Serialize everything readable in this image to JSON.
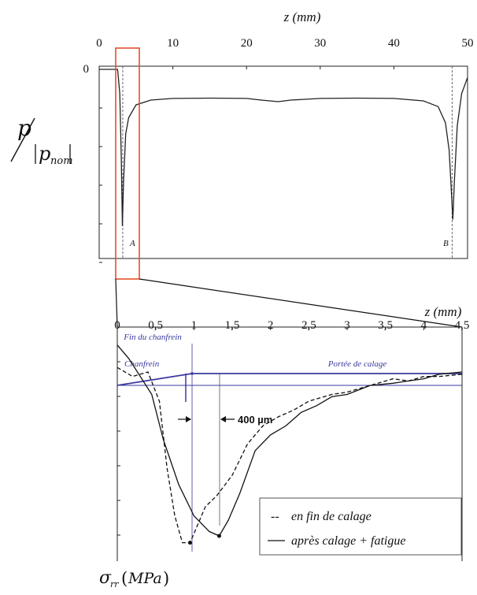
{
  "chart_data": [
    {
      "type": "line",
      "xlabel": "z (mm)",
      "ylabel_parts": {
        "p": "p",
        "p_nom": "p",
        "sub": "nom"
      },
      "xlim": [
        0,
        50
      ],
      "x_ticks": [
        "0",
        "10",
        "20",
        "30",
        "40",
        "50"
      ],
      "y_ticks": [
        "0"
      ],
      "series": [
        {
          "x": [
            0,
            2.5,
            2.8,
            3.0,
            3.15,
            3.3,
            3.6,
            4.0,
            5.0,
            7,
            10,
            15,
            20,
            22,
            24.3,
            26,
            30,
            35,
            40,
            44,
            46,
            47,
            47.5,
            47.8,
            48.0,
            48.2,
            48.6,
            49.2,
            50
          ],
          "y": [
            0,
            0,
            -0.15,
            -0.55,
            -0.97,
            -0.7,
            -0.4,
            -0.3,
            -0.22,
            -0.19,
            -0.18,
            -0.178,
            -0.18,
            -0.19,
            -0.2,
            -0.19,
            -0.18,
            -0.178,
            -0.18,
            -0.195,
            -0.23,
            -0.33,
            -0.5,
            -0.75,
            -0.93,
            -0.7,
            -0.35,
            -0.15,
            -0.05
          ]
        }
      ],
      "annotations": [
        "A",
        "B"
      ],
      "marked_points": [
        3.2,
        47.9
      ]
    },
    {
      "type": "line",
      "xlabel": "z (mm)",
      "ylabel": "σ_rr (MPa)",
      "xlim": [
        0,
        4.5
      ],
      "x_ticks": [
        "0",
        "0,5",
        "1",
        "1,5",
        "2",
        "2,5",
        "3",
        "3,5",
        "4",
        "4,5"
      ],
      "annotations": {
        "fin_chanfrein": "Fin du chanfrein",
        "chanfrein": "Chanfrein",
        "portee": "Portée de calage",
        "gap": "400 µm"
      },
      "legend": {
        "dashed": "en fin de calage",
        "solid": "après calage + fatigue",
        "dashed_style": "-- ",
        "position": "bottom-right"
      },
      "series": [
        {
          "name": "en fin de calage",
          "style": "dashed",
          "x": [
            0,
            0.2,
            0.4,
            0.55,
            0.65,
            0.75,
            0.85,
            0.95,
            1.05,
            1.15,
            1.3,
            1.5,
            1.7,
            1.9,
            2.1,
            2.3,
            2.5,
            2.8,
            3.0,
            3.3,
            3.6,
            3.8,
            4.0,
            4.2,
            4.5
          ],
          "y": [
            -0.18,
            -0.22,
            -0.2,
            -0.33,
            -0.63,
            -0.84,
            -0.96,
            -0.96,
            -0.88,
            -0.8,
            -0.75,
            -0.66,
            -0.52,
            -0.44,
            -0.4,
            -0.37,
            -0.33,
            -0.3,
            -0.29,
            -0.26,
            -0.23,
            -0.24,
            -0.22,
            -0.22,
            -0.21
          ]
        },
        {
          "name": "après calage + fatigue",
          "style": "solid",
          "x": [
            0,
            0.15,
            0.3,
            0.45,
            0.6,
            0.8,
            1.0,
            1.2,
            1.33,
            1.45,
            1.6,
            1.8,
            2.0,
            2.2,
            2.4,
            2.6,
            2.8,
            3.0,
            3.3,
            3.6,
            3.8,
            4.0,
            4.2,
            4.5
          ],
          "y": [
            -0.08,
            -0.14,
            -0.22,
            -0.3,
            -0.5,
            -0.7,
            -0.84,
            -0.91,
            -0.93,
            -0.86,
            -0.74,
            -0.55,
            -0.48,
            -0.44,
            -0.38,
            -0.35,
            -0.31,
            -0.3,
            -0.26,
            -0.25,
            -0.24,
            -0.23,
            -0.21,
            -0.2
          ]
        }
      ]
    }
  ]
}
